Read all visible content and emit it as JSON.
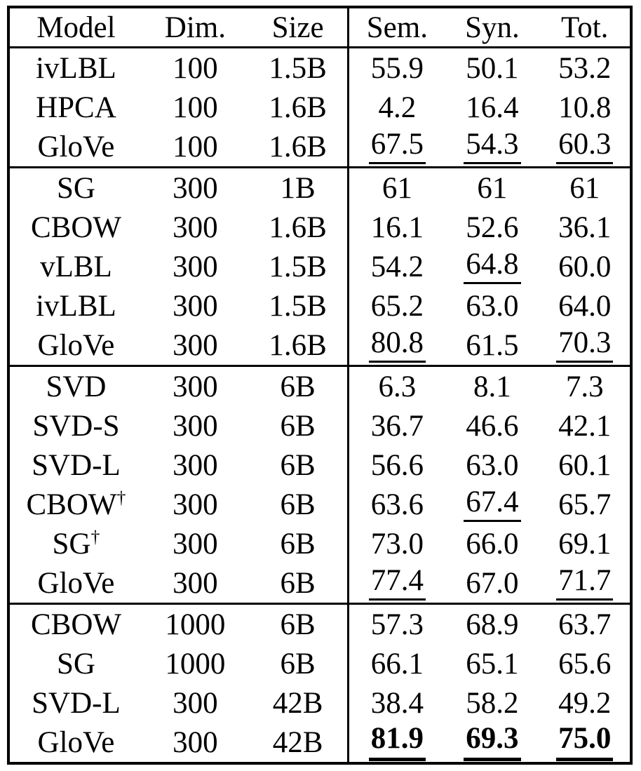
{
  "colors": {
    "text": "#000000",
    "border": "#000000",
    "background": "#ffffff"
  },
  "table": {
    "headers": [
      "Model",
      "Dim.",
      "Size",
      "Sem.",
      "Syn.",
      "Tot."
    ],
    "score_columns": [
      "sem",
      "syn",
      "tot"
    ],
    "blocks": [
      {
        "rows": [
          {
            "model": "ivLBL",
            "model_sup": "",
            "dim": "100",
            "size": "1.5B",
            "scores": [
              "55.9",
              "50.1",
              "53.2"
            ],
            "styles": [
              "none",
              "none",
              "none"
            ]
          },
          {
            "model": "HPCA",
            "model_sup": "",
            "dim": "100",
            "size": "1.6B",
            "scores": [
              "4.2",
              "16.4",
              "10.8"
            ],
            "styles": [
              "none",
              "none",
              "none"
            ]
          },
          {
            "model": "GloVe",
            "model_sup": "",
            "dim": "100",
            "size": "1.6B",
            "scores": [
              "67.5",
              "54.3",
              "60.3"
            ],
            "styles": [
              "underline",
              "underline",
              "underline"
            ]
          }
        ]
      },
      {
        "rows": [
          {
            "model": "SG",
            "model_sup": "",
            "dim": "300",
            "size": "1B",
            "scores": [
              "61",
              "61",
              "61"
            ],
            "styles": [
              "none",
              "none",
              "none"
            ]
          },
          {
            "model": "CBOW",
            "model_sup": "",
            "dim": "300",
            "size": "1.6B",
            "scores": [
              "16.1",
              "52.6",
              "36.1"
            ],
            "styles": [
              "none",
              "none",
              "none"
            ]
          },
          {
            "model": "vLBL",
            "model_sup": "",
            "dim": "300",
            "size": "1.5B",
            "scores": [
              "54.2",
              "64.8",
              "60.0"
            ],
            "styles": [
              "none",
              "underline",
              "none"
            ]
          },
          {
            "model": "ivLBL",
            "model_sup": "",
            "dim": "300",
            "size": "1.5B",
            "scores": [
              "65.2",
              "63.0",
              "64.0"
            ],
            "styles": [
              "none",
              "none",
              "none"
            ]
          },
          {
            "model": "GloVe",
            "model_sup": "",
            "dim": "300",
            "size": "1.6B",
            "scores": [
              "80.8",
              "61.5",
              "70.3"
            ],
            "styles": [
              "underline",
              "none",
              "underline"
            ]
          }
        ]
      },
      {
        "rows": [
          {
            "model": "SVD",
            "model_sup": "",
            "dim": "300",
            "size": "6B",
            "scores": [
              "6.3",
              "8.1",
              "7.3"
            ],
            "styles": [
              "none",
              "none",
              "none"
            ]
          },
          {
            "model": "SVD-S",
            "model_sup": "",
            "dim": "300",
            "size": "6B",
            "scores": [
              "36.7",
              "46.6",
              "42.1"
            ],
            "styles": [
              "none",
              "none",
              "none"
            ]
          },
          {
            "model": "SVD-L",
            "model_sup": "",
            "dim": "300",
            "size": "6B",
            "scores": [
              "56.6",
              "63.0",
              "60.1"
            ],
            "styles": [
              "none",
              "none",
              "none"
            ]
          },
          {
            "model": "CBOW",
            "model_sup": "†",
            "dim": "300",
            "size": "6B",
            "scores": [
              "63.6",
              "67.4",
              "65.7"
            ],
            "styles": [
              "none",
              "underline",
              "none"
            ]
          },
          {
            "model": "SG",
            "model_sup": "†",
            "dim": "300",
            "size": "6B",
            "scores": [
              "73.0",
              "66.0",
              "69.1"
            ],
            "styles": [
              "none",
              "none",
              "none"
            ]
          },
          {
            "model": "GloVe",
            "model_sup": "",
            "dim": "300",
            "size": "6B",
            "scores": [
              "77.4",
              "67.0",
              "71.7"
            ],
            "styles": [
              "underline",
              "none",
              "underline"
            ]
          }
        ]
      },
      {
        "rows": [
          {
            "model": "CBOW",
            "model_sup": "",
            "dim": "1000",
            "size": "6B",
            "scores": [
              "57.3",
              "68.9",
              "63.7"
            ],
            "styles": [
              "none",
              "none",
              "none"
            ]
          },
          {
            "model": "SG",
            "model_sup": "",
            "dim": "1000",
            "size": "6B",
            "scores": [
              "66.1",
              "65.1",
              "65.6"
            ],
            "styles": [
              "none",
              "none",
              "none"
            ]
          },
          {
            "model": "SVD-L",
            "model_sup": "",
            "dim": "300",
            "size": "42B",
            "scores": [
              "38.4",
              "58.2",
              "49.2"
            ],
            "styles": [
              "none",
              "none",
              "none"
            ]
          },
          {
            "model": "GloVe",
            "model_sup": "",
            "dim": "300",
            "size": "42B",
            "scores": [
              "81.9",
              "69.3",
              "75.0"
            ],
            "styles": [
              "bold-underline",
              "bold-underline",
              "bold-underline"
            ]
          }
        ]
      }
    ]
  }
}
